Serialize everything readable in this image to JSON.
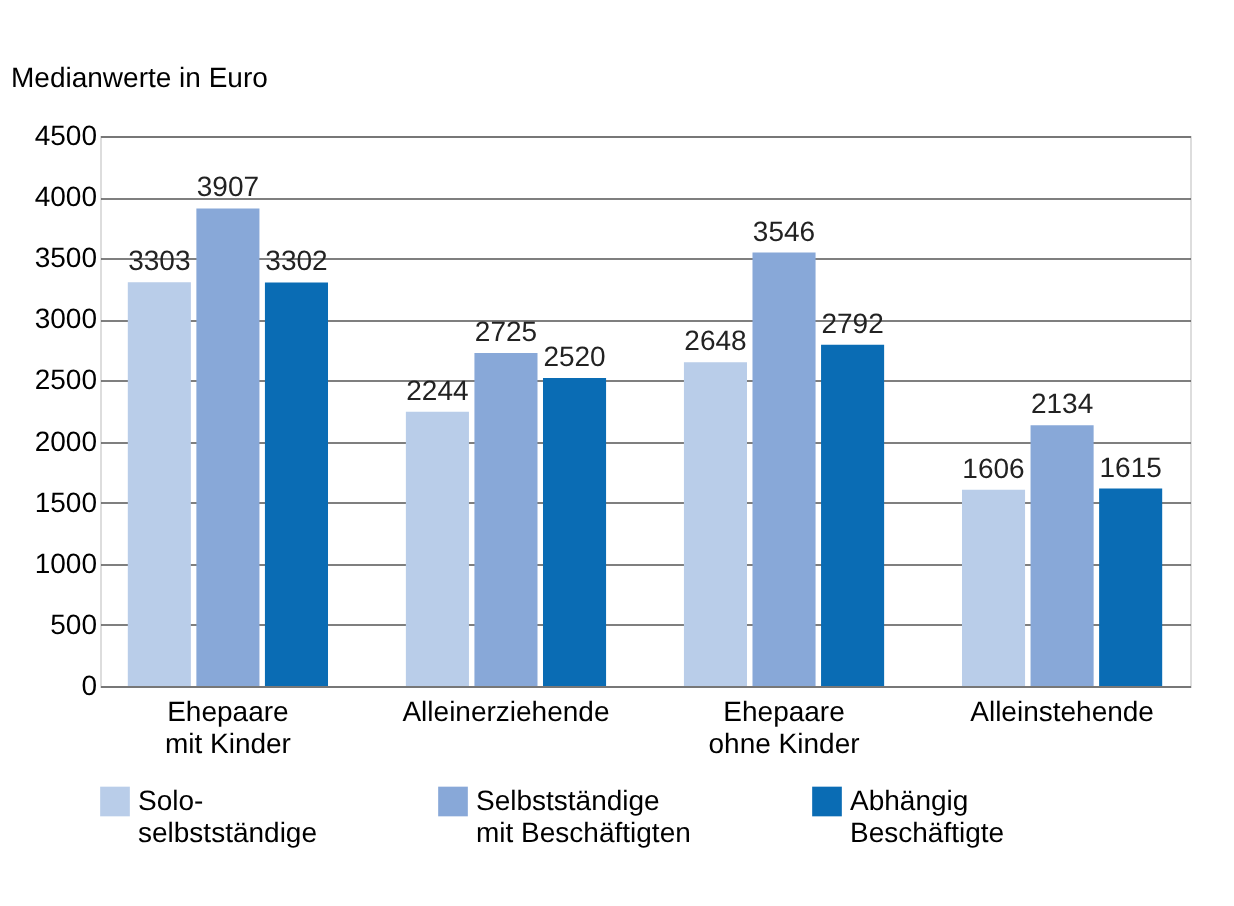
{
  "chart_data": {
    "type": "bar",
    "ylabel": "Medianwerte in Euro",
    "categories": [
      "Ehepaare\nmit Kinder",
      "Alleinerziehende",
      "Ehepaare\nohne Kinder",
      "Alleinstehende"
    ],
    "series": [
      {
        "name": "Solo-\nselbstständige",
        "color": "#b9cde9",
        "values": [
          3303,
          2244,
          2648,
          1606
        ]
      },
      {
        "name": "Selbstständige\nmit Beschäftigten",
        "color": "#88a8d8",
        "values": [
          3907,
          2725,
          3546,
          2134
        ]
      },
      {
        "name": "Abhängig\nBeschäftigte",
        "color": "#0a6cb4",
        "values": [
          3302,
          2520,
          2792,
          1615
        ]
      }
    ],
    "ylim": [
      0,
      4500
    ],
    "yticks": [
      0,
      500,
      1000,
      1500,
      2000,
      2500,
      3000,
      3500,
      4000,
      4500
    ],
    "grid": "y",
    "legend": "bottom",
    "data_labels": true
  }
}
